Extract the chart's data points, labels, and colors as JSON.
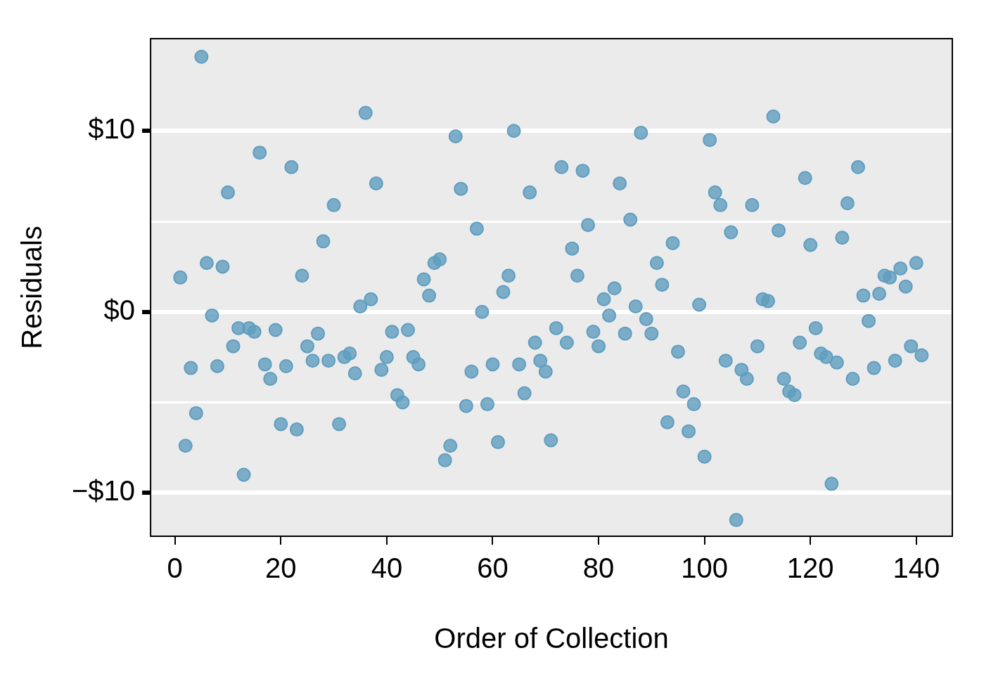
{
  "chart_data": {
    "type": "scatter",
    "xlabel": "Order of Collection",
    "ylabel": "Residuals",
    "x": [
      1,
      2,
      3,
      4,
      5,
      6,
      7,
      8,
      9,
      10,
      11,
      12,
      13,
      14,
      15,
      16,
      17,
      18,
      19,
      20,
      21,
      22,
      23,
      24,
      25,
      26,
      27,
      28,
      29,
      30,
      31,
      32,
      33,
      34,
      35,
      36,
      37,
      38,
      39,
      40,
      41,
      42,
      43,
      44,
      45,
      46,
      47,
      48,
      49,
      50,
      51,
      52,
      53,
      54,
      55,
      56,
      57,
      58,
      59,
      60,
      61,
      62,
      63,
      64,
      65,
      66,
      67,
      68,
      69,
      70,
      71,
      72,
      73,
      74,
      75,
      76,
      77,
      78,
      79,
      80,
      81,
      82,
      83,
      84,
      85,
      86,
      87,
      88,
      89,
      90,
      91,
      92,
      93,
      94,
      95,
      96,
      97,
      98,
      99,
      100,
      101,
      102,
      103,
      104,
      105,
      106,
      107,
      108,
      109,
      110,
      111,
      112,
      113,
      114,
      115,
      116,
      117,
      118,
      119,
      120,
      121,
      122,
      123,
      124,
      125,
      126,
      127,
      128,
      129,
      130,
      131,
      132,
      133,
      134,
      135,
      136,
      137,
      138,
      139,
      140,
      141
    ],
    "series": [
      {
        "color": "#5f9dbf",
        "values": [
          1.9,
          -7.4,
          -3.1,
          -5.6,
          14.1,
          2.7,
          -0.2,
          -3.0,
          2.5,
          6.6,
          -1.9,
          -0.9,
          -9.0,
          -0.9,
          -1.1,
          8.8,
          -2.9,
          -3.7,
          -1.0,
          -6.2,
          -3.0,
          8.0,
          -6.5,
          2.0,
          -1.9,
          -2.7,
          -1.2,
          3.9,
          -2.7,
          5.9,
          -6.2,
          -2.5,
          -2.3,
          -3.4,
          0.3,
          11.0,
          0.7,
          7.1,
          -3.2,
          -2.5,
          -1.1,
          -4.6,
          -5.0,
          -1.0,
          -2.5,
          -2.9,
          1.8,
          0.9,
          2.7,
          2.9,
          -8.2,
          -7.4,
          9.7,
          6.8,
          -5.2,
          -3.3,
          4.6,
          0.0,
          -5.1,
          -2.9,
          -7.2,
          1.1,
          2.0,
          10.0,
          -2.9,
          -4.5,
          6.6,
          -1.7,
          -2.7,
          -3.3,
          -7.1,
          -0.9,
          8.0,
          -1.7,
          3.5,
          2.0,
          7.8,
          4.8,
          -1.1,
          -1.9,
          0.7,
          -0.2,
          1.3,
          7.1,
          -1.2,
          5.1,
          0.3,
          9.9,
          -0.4,
          -1.2,
          2.7,
          1.5,
          -6.1,
          3.8,
          -2.2,
          -4.4,
          -6.6,
          -5.1,
          0.4,
          -8.0,
          9.5,
          6.6,
          5.9,
          -2.7,
          4.4,
          -11.5,
          -3.2,
          -3.7,
          5.9,
          -1.9,
          0.7,
          0.6,
          10.8,
          4.5,
          -3.7,
          -4.4,
          -4.6,
          -1.7,
          7.4,
          3.7,
          -0.9,
          -2.3,
          -2.5,
          -9.5,
          -2.8,
          4.1,
          6.0,
          -3.7,
          8.0,
          0.9,
          -0.5,
          -3.1,
          1.0,
          2.0,
          1.9,
          -2.7,
          2.4,
          1.4,
          -1.9,
          2.7,
          -2.4
        ]
      }
    ],
    "xlim": [
      -4.6,
      146.8
    ],
    "ylim": [
      -12.4,
      15.1
    ],
    "xticks": [
      0,
      20,
      40,
      60,
      80,
      100,
      120,
      140
    ],
    "yticks": [
      {
        "value": -10,
        "label": "−$10"
      },
      {
        "value": -5,
        "label": null
      },
      {
        "value": 0,
        "label": "$0"
      },
      {
        "value": 5,
        "label": null
      },
      {
        "value": 10,
        "label": "$10"
      }
    ],
    "grid": "y",
    "marker": "circle",
    "legend": false
  }
}
